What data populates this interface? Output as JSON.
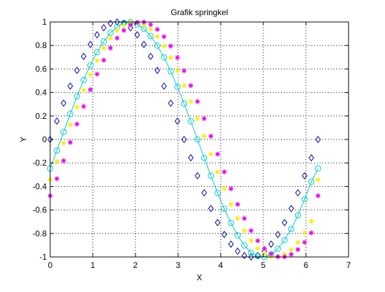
{
  "chart_data": {
    "type": "scatter",
    "title": "Grafik springkel",
    "xlabel": "X",
    "ylabel": "Y",
    "xlim": [
      0,
      7
    ],
    "ylim": [
      -1,
      1
    ],
    "xticks": [
      0,
      1,
      2,
      3,
      4,
      5,
      6,
      7
    ],
    "yticks": [
      -1,
      -0.8,
      -0.6,
      -0.4,
      -0.2,
      0,
      0.2,
      0.4,
      0.6,
      0.8,
      1
    ],
    "xtick_labels": [
      "0",
      "1",
      "2",
      "3",
      "4",
      "5",
      "6",
      "7"
    ],
    "ytick_labels": [
      "-1",
      "-0.8",
      "-0.6",
      "-0.4",
      "-0.2",
      "0",
      "0.2",
      "0.4",
      "0.6",
      "0.8",
      "1"
    ],
    "grid": true,
    "grid_style": "dotted",
    "x_step": 0.1571,
    "series": [
      {
        "marker": "diamond",
        "color": "#0000aa",
        "line": false,
        "x": [
          0,
          0.1571,
          0.3142,
          0.4712,
          0.6283,
          0.7854,
          0.9425,
          1.0996,
          1.2566,
          1.4137,
          1.5708,
          1.7279,
          1.885,
          2.042,
          2.1991,
          2.3562,
          2.5133,
          2.6704,
          2.8274,
          2.9845,
          3.1416,
          3.2987,
          3.4558,
          3.6128,
          3.7699,
          3.927,
          4.0841,
          4.2412,
          4.3982,
          4.5553,
          4.7124,
          4.8695,
          5.0265,
          5.1836,
          5.3407,
          5.4978,
          5.6549,
          5.8119,
          5.969,
          6.1261,
          6.2832
        ],
        "y": [
          0,
          0.156,
          0.309,
          0.454,
          0.588,
          0.707,
          0.809,
          0.891,
          0.951,
          0.988,
          1,
          0.988,
          0.951,
          0.891,
          0.809,
          0.707,
          0.588,
          0.454,
          0.309,
          0.156,
          0,
          -0.156,
          -0.309,
          -0.454,
          -0.588,
          -0.707,
          -0.809,
          -0.891,
          -0.951,
          -0.988,
          -1,
          -0.988,
          -0.951,
          -0.891,
          -0.809,
          -0.707,
          -0.588,
          -0.454,
          -0.309,
          -0.156,
          0
        ]
      },
      {
        "marker": "circle",
        "color": "#00cccc",
        "line": true,
        "x": [
          0,
          0.1571,
          0.3142,
          0.4712,
          0.6283,
          0.7854,
          0.9425,
          1.0996,
          1.2566,
          1.4137,
          1.5708,
          1.7279,
          1.885,
          2.042,
          2.1991,
          2.3562,
          2.5133,
          2.6704,
          2.8274,
          2.9845,
          3.1416,
          3.2987,
          3.4558,
          3.6128,
          3.7699,
          3.927,
          4.0841,
          4.2412,
          4.3982,
          4.5553,
          4.7124,
          4.8695,
          5.0265,
          5.1836,
          5.3407,
          5.4978,
          5.6549,
          5.8119,
          5.969,
          6.1261,
          6.2832
        ],
        "y": [
          -0.247,
          -0.094,
          0.063,
          0.218,
          0.367,
          0.506,
          0.632,
          0.743,
          0.835,
          0.908,
          0.959,
          0.993,
          0.998,
          0.981,
          0.942,
          0.88,
          0.799,
          0.699,
          0.581,
          0.449,
          0.306,
          0.155,
          0.0,
          -0.157,
          -0.309,
          -0.455,
          -0.59,
          -0.711,
          -0.816,
          -0.902,
          -0.964,
          -0.993,
          -0.999,
          -0.978,
          -0.93,
          -0.857,
          -0.762,
          -0.645,
          -0.508,
          -0.36,
          -0.247
        ]
      },
      {
        "marker": "asterisk",
        "color": "#ffee00",
        "line": false,
        "x": [
          0,
          0.1571,
          0.3142,
          0.4712,
          0.6283,
          0.7854,
          0.9425,
          1.0996,
          1.2566,
          1.4137,
          1.5708,
          1.7279,
          1.885,
          2.042,
          2.1991,
          2.3562,
          2.5133,
          2.6704,
          2.8274,
          2.9845,
          3.1416,
          3.2987,
          3.4558,
          3.6128,
          3.7699,
          3.927,
          4.0841,
          4.2412,
          4.3982,
          4.5553,
          4.7124,
          4.8695,
          5.0265,
          5.1836,
          5.3407,
          5.4978,
          5.6549,
          5.8119,
          5.969,
          6.1261,
          6.2832
        ],
        "y": [
          -0.342,
          -0.188,
          -0.031,
          0.125,
          0.276,
          0.42,
          0.552,
          0.672,
          0.776,
          0.862,
          0.928,
          0.973,
          0.997,
          0.999,
          0.978,
          0.937,
          0.875,
          0.795,
          0.697,
          0.585,
          0.459,
          0.323,
          0.178,
          0.028,
          -0.125,
          -0.276,
          -0.42,
          -0.552,
          -0.672,
          -0.776,
          -0.862,
          -0.928,
          -0.973,
          -0.997,
          -0.999,
          -0.978,
          -0.937,
          -0.875,
          -0.795,
          -0.697,
          -0.342
        ]
      },
      {
        "marker": "asterisk",
        "color": "#ee00ee",
        "line": false,
        "x": [
          0,
          0.1571,
          0.3142,
          0.4712,
          0.6283,
          0.7854,
          0.9425,
          1.0996,
          1.2566,
          1.4137,
          1.5708,
          1.7279,
          1.885,
          2.042,
          2.1991,
          2.3562,
          2.5133,
          2.6704,
          2.8274,
          2.9845,
          3.1416,
          3.2987,
          3.4558,
          3.6128,
          3.7699,
          3.927,
          4.0841,
          4.2412,
          4.3982,
          4.5553,
          4.7124,
          4.8695,
          5.0265,
          5.1836,
          5.3407,
          5.4978,
          5.6549,
          5.8119,
          5.969,
          6.1261,
          6.2832
        ],
        "y": [
          -0.479,
          -0.334,
          -0.181,
          -0.025,
          0.131,
          0.281,
          0.424,
          0.556,
          0.675,
          0.778,
          0.863,
          0.929,
          0.974,
          0.997,
          0.999,
          0.978,
          0.937,
          0.875,
          0.795,
          0.697,
          0.585,
          0.459,
          0.323,
          0.178,
          0.028,
          -0.125,
          -0.276,
          -0.42,
          -0.552,
          -0.672,
          -0.776,
          -0.862,
          -0.928,
          -0.973,
          -0.997,
          -0.999,
          -0.978,
          -0.937,
          -0.875,
          -0.795,
          -0.479
        ]
      }
    ]
  }
}
